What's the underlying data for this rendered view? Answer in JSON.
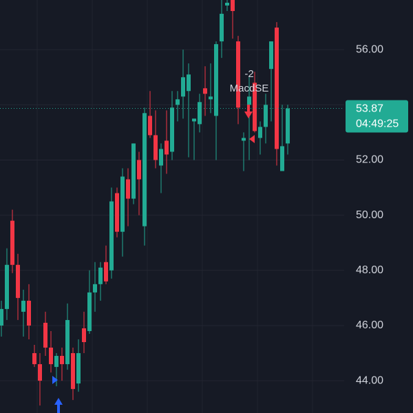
{
  "chart_data": {
    "type": "candlestick",
    "up_color": "#22ab94",
    "down_color": "#f23645",
    "ylim": [
      42.83,
      57.8
    ],
    "yticks": [
      {
        "value": 44,
        "label": "44.00"
      },
      {
        "value": 46,
        "label": "46.00"
      },
      {
        "value": 48,
        "label": "48.00"
      },
      {
        "value": 50,
        "label": "50.00"
      },
      {
        "value": 52,
        "label": "52.00"
      },
      {
        "value": 54,
        "label": "54.00"
      },
      {
        "value": 56,
        "label": "56.00"
      }
    ],
    "grid": true,
    "series": {
      "open": [
        46.0,
        46.6,
        49.8,
        48.2,
        46.5,
        46.9,
        45.0,
        44.6,
        46.1,
        45.2,
        44.5,
        44.9,
        44.6,
        45.0,
        43.9,
        45.9,
        45.8,
        47.2,
        47.5,
        48.3,
        48.0,
        50.8,
        49.4,
        51.3,
        50.6,
        52.0,
        49.6,
        53.6,
        52.9,
        51.8,
        52.7,
        52.3,
        54.0,
        54.3,
        54.5,
        53.4,
        53.3,
        54.6,
        54.2,
        53.6,
        56.3,
        57.6,
        57.8,
        56.3,
        52.7,
        54.0,
        54.8,
        52.8,
        53.2,
        55.3,
        56.8,
        51.6,
        52.6
      ],
      "high": [
        46.9,
        48.8,
        50.2,
        48.6,
        47.3,
        47.5,
        45.3,
        45.0,
        46.5,
        45.8,
        45.0,
        45.2,
        46.8,
        45.2,
        45.5,
        46.5,
        48.0,
        48.3,
        48.3,
        48.9,
        51.0,
        51.0,
        51.7,
        51.7,
        52.6,
        52.3,
        53.9,
        54.5,
        53.8,
        52.6,
        53.8,
        54.5,
        54.5,
        56.0,
        55.5,
        53.5,
        54.4,
        55.4,
        55.5,
        56.3,
        57.8,
        57.8,
        57.8,
        56.5,
        53.0,
        55.0,
        55.2,
        53.4,
        54.4,
        56.3,
        57.0,
        54.0,
        54.0
      ],
      "low": [
        45.6,
        46.2,
        47.9,
        46.2,
        45.6,
        45.5,
        44.5,
        43.1,
        44.9,
        44.3,
        43.8,
        44.0,
        44.4,
        43.3,
        43.6,
        45.0,
        45.7,
        46.5,
        46.9,
        47.5,
        47.7,
        49.2,
        48.5,
        49.6,
        50.4,
        50.0,
        48.9,
        52.8,
        51.7,
        50.8,
        51.5,
        52.0,
        53.4,
        53.5,
        52.1,
        52.0,
        53.0,
        53.6,
        53.7,
        52.0,
        55.7,
        57.4,
        56.4,
        53.3,
        51.6,
        52.0,
        53.0,
        52.2,
        52.6,
        53.4,
        51.8,
        51.6,
        52.2
      ],
      "close": [
        46.6,
        48.2,
        48.2,
        47.0,
        46.9,
        46.0,
        44.6,
        44.0,
        45.2,
        44.6,
        44.9,
        44.6,
        46.2,
        43.7,
        45.0,
        45.4,
        47.2,
        47.5,
        48.1,
        47.6,
        50.5,
        49.4,
        51.4,
        50.6,
        52.6,
        51.3,
        53.7,
        52.9,
        52.0,
        52.4,
        52.2,
        53.9,
        54.2,
        55.0,
        55.1,
        53.5,
        54.1,
        54.4,
        54.3,
        56.2,
        57.3,
        57.7,
        57.4,
        53.9,
        52.8,
        54.3,
        53.05,
        53.2,
        54.0,
        56.3,
        52.4,
        52.5,
        53.87
      ]
    },
    "last_price": 53.87,
    "countdown": "04:49:25",
    "annotations": [
      "-2",
      "MacdSE"
    ]
  }
}
